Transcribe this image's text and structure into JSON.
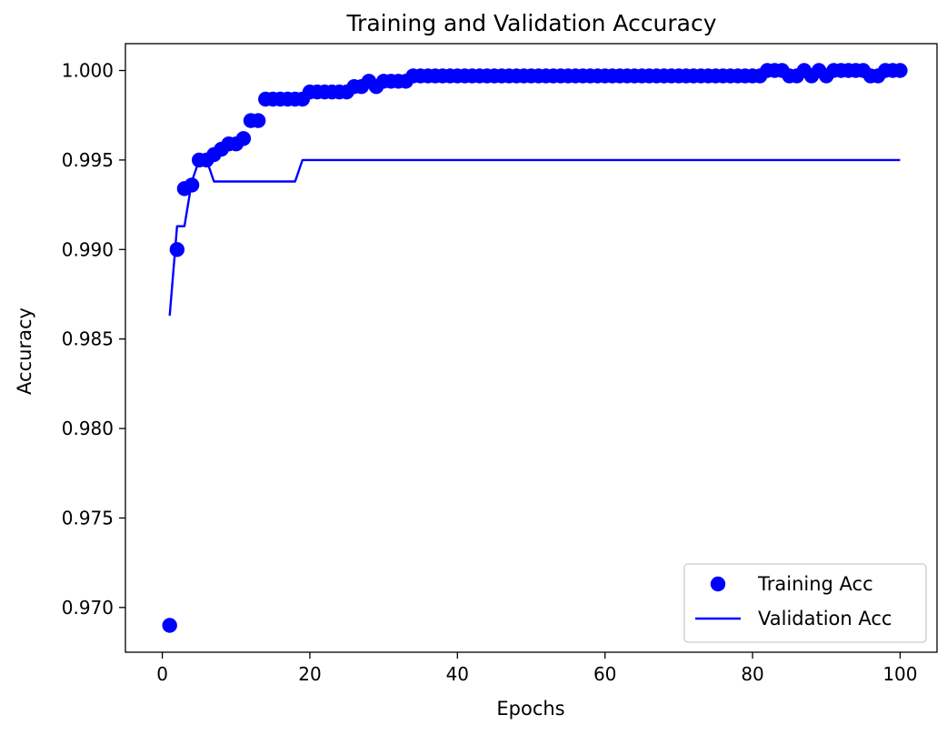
{
  "chart_data": {
    "type": "line",
    "title": "Training and Validation Accuracy",
    "xlabel": "Epochs",
    "ylabel": "Accuracy",
    "xlim": [
      -5,
      105
    ],
    "ylim": [
      0.9675,
      1.0015
    ],
    "xticks": [
      0,
      20,
      40,
      60,
      80,
      100
    ],
    "xtick_labels": [
      "0",
      "20",
      "40",
      "60",
      "80",
      "100"
    ],
    "yticks": [
      0.97,
      0.975,
      0.98,
      0.985,
      0.99,
      0.995,
      1.0
    ],
    "ytick_labels": [
      "0.970",
      "0.975",
      "0.980",
      "0.985",
      "0.990",
      "0.995",
      "1.000"
    ],
    "grid": false,
    "legend_position": "lower-right",
    "series": [
      {
        "name": "Training Acc",
        "style": "markers",
        "color": "#0000ff",
        "x": [
          1,
          2,
          3,
          4,
          5,
          6,
          7,
          8,
          9,
          10,
          11,
          12,
          13,
          14,
          15,
          16,
          17,
          18,
          19,
          20,
          21,
          22,
          23,
          24,
          25,
          26,
          27,
          28,
          29,
          30,
          31,
          32,
          33,
          34,
          35,
          36,
          37,
          38,
          39,
          40,
          41,
          42,
          43,
          44,
          45,
          46,
          47,
          48,
          49,
          50,
          51,
          52,
          53,
          54,
          55,
          56,
          57,
          58,
          59,
          60,
          61,
          62,
          63,
          64,
          65,
          66,
          67,
          68,
          69,
          70,
          71,
          72,
          73,
          74,
          75,
          76,
          77,
          78,
          79,
          80,
          81,
          82,
          83,
          84,
          85,
          86,
          87,
          88,
          89,
          90,
          91,
          92,
          93,
          94,
          95,
          96,
          97,
          98,
          99,
          100
        ],
        "y": [
          0.969,
          0.99,
          0.9934,
          0.9936,
          0.995,
          0.995,
          0.9953,
          0.9956,
          0.9959,
          0.9959,
          0.9962,
          0.9972,
          0.9972,
          0.9984,
          0.9984,
          0.9984,
          0.9984,
          0.9984,
          0.9984,
          0.9988,
          0.9988,
          0.9988,
          0.9988,
          0.9988,
          0.9988,
          0.9991,
          0.9991,
          0.9994,
          0.9991,
          0.9994,
          0.9994,
          0.9994,
          0.9994,
          0.9997,
          0.9997,
          0.9997,
          0.9997,
          0.9997,
          0.9997,
          0.9997,
          0.9997,
          0.9997,
          0.9997,
          0.9997,
          0.9997,
          0.9997,
          0.9997,
          0.9997,
          0.9997,
          0.9997,
          0.9997,
          0.9997,
          0.9997,
          0.9997,
          0.9997,
          0.9997,
          0.9997,
          0.9997,
          0.9997,
          0.9997,
          0.9997,
          0.9997,
          0.9997,
          0.9997,
          0.9997,
          0.9997,
          0.9997,
          0.9997,
          0.9997,
          0.9997,
          0.9997,
          0.9997,
          0.9997,
          0.9997,
          0.9997,
          0.9997,
          0.9997,
          0.9997,
          0.9997,
          0.9997,
          0.9997,
          1.0,
          1.0,
          1.0,
          0.9997,
          0.9997,
          1.0,
          0.9997,
          1.0,
          0.9997,
          1.0,
          1.0,
          1.0,
          1.0,
          1.0,
          0.9997,
          0.9997,
          1.0,
          1.0,
          1.0
        ]
      },
      {
        "name": "Validation Acc",
        "style": "line",
        "color": "#0000ff",
        "x": [
          1,
          2,
          3,
          4,
          5,
          6,
          7,
          8,
          9,
          10,
          11,
          12,
          13,
          14,
          15,
          16,
          17,
          18,
          19,
          20,
          21,
          22,
          23,
          24,
          25,
          26,
          27,
          28,
          29,
          30,
          31,
          32,
          33,
          34,
          35,
          36,
          37,
          38,
          39,
          40,
          41,
          42,
          43,
          44,
          45,
          46,
          47,
          48,
          49,
          50,
          51,
          52,
          53,
          54,
          55,
          56,
          57,
          58,
          59,
          60,
          61,
          62,
          63,
          64,
          65,
          66,
          67,
          68,
          69,
          70,
          71,
          72,
          73,
          74,
          75,
          76,
          77,
          78,
          79,
          80,
          81,
          82,
          83,
          84,
          85,
          86,
          87,
          88,
          89,
          90,
          91,
          92,
          93,
          94,
          95,
          96,
          97,
          98,
          99,
          100
        ],
        "y": [
          0.9863,
          0.9913,
          0.9913,
          0.9938,
          0.995,
          0.995,
          0.9938,
          0.9938,
          0.9938,
          0.9938,
          0.9938,
          0.9938,
          0.9938,
          0.9938,
          0.9938,
          0.9938,
          0.9938,
          0.9938,
          0.995,
          0.995,
          0.995,
          0.995,
          0.995,
          0.995,
          0.995,
          0.995,
          0.995,
          0.995,
          0.995,
          0.995,
          0.995,
          0.995,
          0.995,
          0.995,
          0.995,
          0.995,
          0.995,
          0.995,
          0.995,
          0.995,
          0.995,
          0.995,
          0.995,
          0.995,
          0.995,
          0.995,
          0.995,
          0.995,
          0.995,
          0.995,
          0.995,
          0.995,
          0.995,
          0.995,
          0.995,
          0.995,
          0.995,
          0.995,
          0.995,
          0.995,
          0.995,
          0.995,
          0.995,
          0.995,
          0.995,
          0.995,
          0.995,
          0.995,
          0.995,
          0.995,
          0.995,
          0.995,
          0.995,
          0.995,
          0.995,
          0.995,
          0.995,
          0.995,
          0.995,
          0.995,
          0.995,
          0.995,
          0.995,
          0.995,
          0.995,
          0.995,
          0.995,
          0.995,
          0.995,
          0.995,
          0.995,
          0.995,
          0.995,
          0.995,
          0.995,
          0.995,
          0.995,
          0.995,
          0.995,
          0.995
        ]
      }
    ]
  }
}
